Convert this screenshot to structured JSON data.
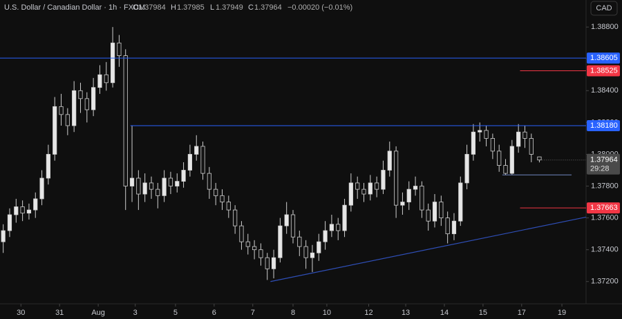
{
  "chart_data": {
    "type": "candlestick",
    "title": "U.S. Dollar / Canadian Dollar · 1h · FXCM",
    "ohlc_letters": [
      "O",
      "H",
      "L",
      "C"
    ],
    "change_label": "−0.00020 (−0.01%)",
    "currency": "CAD",
    "countdown": "29:28",
    "up_color": "#e6e6e6",
    "down_color": "#141414",
    "wick_color": "#d0d0d0",
    "grid": false,
    "xlim": [
      0,
      364
    ],
    "ylim": [
      1.3706,
      1.3897
    ],
    "yticks": [
      {
        "value": 1.372,
        "label": "1.37200"
      },
      {
        "value": 1.374,
        "label": "1.37400"
      },
      {
        "value": 1.376,
        "label": "1.37600"
      },
      {
        "value": 1.378,
        "label": "1.37800"
      },
      {
        "value": 1.38,
        "label": "1.38000"
      },
      {
        "value": 1.382,
        "label": "1.38200"
      },
      {
        "value": 1.384,
        "label": "1.38400"
      },
      {
        "value": 1.386,
        "label": "1.38600"
      },
      {
        "value": 1.388,
        "label": "1.38800"
      }
    ],
    "xticks": [
      {
        "value": 13,
        "label": "30"
      },
      {
        "value": 37,
        "label": "31"
      },
      {
        "value": 61,
        "label": "Aug"
      },
      {
        "value": 84,
        "label": "3"
      },
      {
        "value": 109,
        "label": "5"
      },
      {
        "value": 133,
        "label": "6"
      },
      {
        "value": 157,
        "label": "7"
      },
      {
        "value": 182,
        "label": "8"
      },
      {
        "value": 203,
        "label": "10"
      },
      {
        "value": 229,
        "label": "12"
      },
      {
        "value": 252,
        "label": "13"
      },
      {
        "value": 276,
        "label": "14"
      },
      {
        "value": 300,
        "label": "15"
      },
      {
        "value": 324,
        "label": "17"
      },
      {
        "value": 349,
        "label": "19"
      }
    ],
    "x": [
      2,
      6,
      10,
      14,
      18,
      22,
      26,
      30,
      34,
      38,
      42,
      46,
      50,
      54,
      58,
      62,
      66,
      70,
      74,
      78,
      82,
      86,
      90,
      94,
      98,
      102,
      106,
      110,
      114,
      118,
      122,
      126,
      130,
      134,
      138,
      142,
      146,
      150,
      154,
      158,
      162,
      166,
      170,
      174,
      178,
      182,
      186,
      190,
      194,
      198,
      202,
      206,
      210,
      214,
      218,
      222,
      226,
      230,
      234,
      238,
      242,
      246,
      250,
      254,
      258,
      262,
      266,
      270,
      274,
      278,
      282,
      286,
      290,
      294,
      298,
      302,
      306,
      310,
      314,
      318,
      322,
      326,
      330,
      335
    ],
    "open": [
      1.3745,
      1.3752,
      1.3762,
      1.3767,
      1.3763,
      1.3765,
      1.3772,
      1.3785,
      1.38,
      1.383,
      1.3825,
      1.3818,
      1.384,
      1.3835,
      1.3828,
      1.3842,
      1.385,
      1.3845,
      1.387,
      1.3862,
      1.378,
      1.3785,
      1.3775,
      1.3782,
      1.3778,
      1.3774,
      1.3785,
      1.378,
      1.3783,
      1.379,
      1.38,
      1.3805,
      1.3788,
      1.3778,
      1.3774,
      1.377,
      1.3765,
      1.3755,
      1.3745,
      1.3742,
      1.374,
      1.3735,
      1.3728,
      1.3735,
      1.3755,
      1.3762,
      1.3748,
      1.3742,
      1.3735,
      1.3738,
      1.3745,
      1.3752,
      1.3756,
      1.3752,
      1.3768,
      1.3782,
      1.3778,
      1.3775,
      1.3782,
      1.3778,
      1.379,
      1.3802,
      1.3768,
      1.377,
      1.3778,
      1.378,
      1.3765,
      1.3758,
      1.377,
      1.376,
      1.375,
      1.3758,
      1.3782,
      1.38,
      1.3814,
      1.3815,
      1.381,
      1.3802,
      1.3793,
      1.3788,
      1.3805,
      1.3814,
      1.381,
      1.37984
    ],
    "high": [
      1.3756,
      1.3766,
      1.3772,
      1.3771,
      1.3769,
      1.3776,
      1.379,
      1.3806,
      1.3836,
      1.3838,
      1.3829,
      1.3846,
      1.3845,
      1.3839,
      1.3848,
      1.3856,
      1.3858,
      1.388,
      1.3875,
      1.3866,
      1.3818,
      1.379,
      1.3788,
      1.3786,
      1.3782,
      1.379,
      1.3789,
      1.3788,
      1.3795,
      1.3806,
      1.3812,
      1.3808,
      1.3792,
      1.3782,
      1.3778,
      1.3774,
      1.3768,
      1.3758,
      1.375,
      1.3746,
      1.3744,
      1.3738,
      1.374,
      1.376,
      1.377,
      1.3765,
      1.3752,
      1.3746,
      1.3743,
      1.375,
      1.3758,
      1.3762,
      1.376,
      1.3772,
      1.3788,
      1.3786,
      1.3782,
      1.3787,
      1.3786,
      1.3796,
      1.3808,
      1.3805,
      1.3776,
      1.3783,
      1.3786,
      1.3783,
      1.3769,
      1.3775,
      1.3774,
      1.3764,
      1.3763,
      1.3786,
      1.3806,
      1.3819,
      1.382,
      1.3818,
      1.3813,
      1.3806,
      1.3797,
      1.3809,
      1.3819,
      1.3818,
      1.3813,
      1.37985
    ],
    "low": [
      1.3738,
      1.3748,
      1.3757,
      1.3758,
      1.3759,
      1.376,
      1.3768,
      1.3781,
      1.3796,
      1.3818,
      1.3812,
      1.3814,
      1.3826,
      1.382,
      1.3824,
      1.3838,
      1.384,
      1.3842,
      1.3855,
      1.3765,
      1.377,
      1.3765,
      1.377,
      1.3772,
      1.3766,
      1.377,
      1.3775,
      1.3776,
      1.3779,
      1.3786,
      1.3796,
      1.3784,
      1.3772,
      1.3768,
      1.3765,
      1.376,
      1.375,
      1.374,
      1.3737,
      1.3734,
      1.373,
      1.3721,
      1.3722,
      1.3732,
      1.375,
      1.3744,
      1.3736,
      1.3728,
      1.3726,
      1.3733,
      1.374,
      1.3748,
      1.3746,
      1.3748,
      1.3764,
      1.3772,
      1.377,
      1.3771,
      1.3773,
      1.3775,
      1.3786,
      1.376,
      1.3762,
      1.3765,
      1.3774,
      1.376,
      1.3752,
      1.3754,
      1.3755,
      1.3744,
      1.3746,
      1.3755,
      1.3778,
      1.3796,
      1.3808,
      1.3805,
      1.3797,
      1.3789,
      1.3787,
      1.3787,
      1.3801,
      1.3804,
      1.3795,
      1.37949
    ],
    "close": [
      1.3752,
      1.3762,
      1.3767,
      1.3763,
      1.3765,
      1.3772,
      1.3785,
      1.38,
      1.383,
      1.3825,
      1.3818,
      1.384,
      1.3835,
      1.3828,
      1.3842,
      1.385,
      1.3845,
      1.387,
      1.3862,
      1.378,
      1.3785,
      1.3775,
      1.3782,
      1.3778,
      1.3774,
      1.3785,
      1.378,
      1.3783,
      1.379,
      1.38,
      1.3805,
      1.3788,
      1.3778,
      1.3774,
      1.377,
      1.3765,
      1.3755,
      1.3745,
      1.3742,
      1.374,
      1.3735,
      1.3728,
      1.3735,
      1.3755,
      1.3762,
      1.3748,
      1.3742,
      1.3735,
      1.3738,
      1.3745,
      1.3752,
      1.3756,
      1.3752,
      1.3768,
      1.3782,
      1.3778,
      1.3775,
      1.3782,
      1.3778,
      1.379,
      1.3802,
      1.3768,
      1.377,
      1.3778,
      1.378,
      1.3765,
      1.3758,
      1.377,
      1.376,
      1.375,
      1.3758,
      1.3782,
      1.38,
      1.3814,
      1.3815,
      1.381,
      1.3802,
      1.3793,
      1.3788,
      1.3805,
      1.3814,
      1.381,
      1.38,
      1.37964
    ],
    "levels": [
      {
        "value": 1.38605,
        "color": "#2962ff",
        "from": 0
      },
      {
        "value": 1.38525,
        "color": "#f23645",
        "from": 323
      },
      {
        "value": 1.3818,
        "label": "1.38180",
        "color": "#2962ff",
        "from": 81
      },
      {
        "value": 1.37663,
        "color": "#f23645",
        "from": 323
      }
    ],
    "segments": [
      {
        "x": [
          312,
          355
        ],
        "y": [
          1.3787,
          1.3787
        ],
        "color": "#5d6f9e"
      },
      {
        "x": [
          168,
          364
        ],
        "y": [
          1.372,
          1.37605
        ],
        "color": "#2f4fb8"
      }
    ]
  }
}
